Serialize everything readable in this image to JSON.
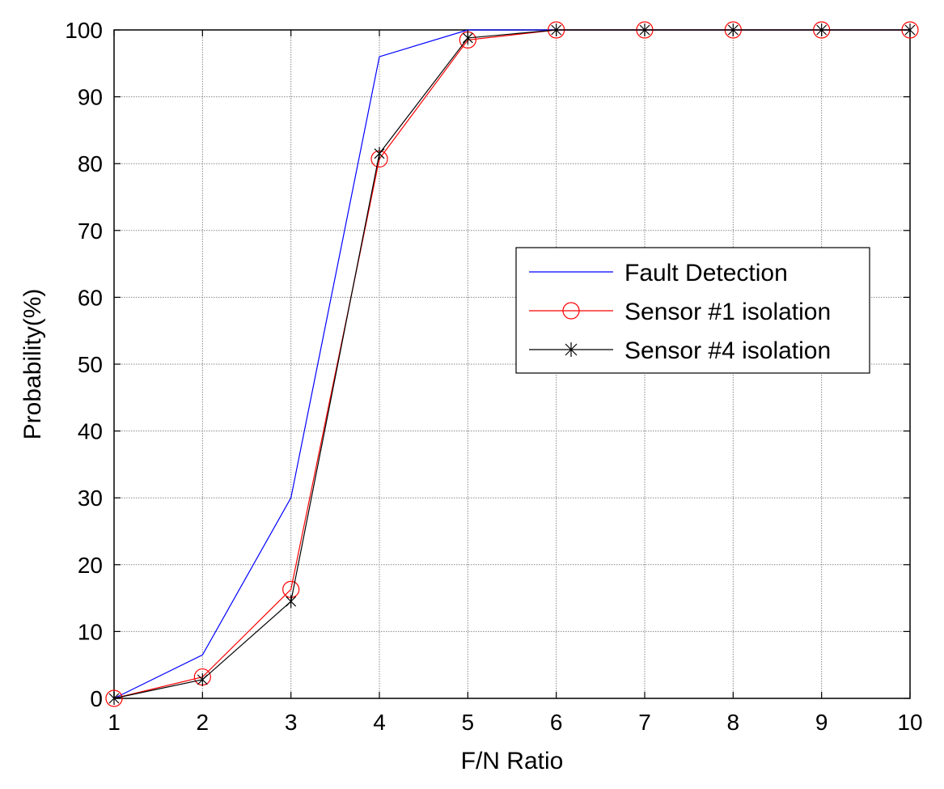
{
  "chart_data": {
    "type": "line",
    "xlabel": "F/N Ratio",
    "ylabel": "Probability(%)",
    "xlim": [
      1,
      10
    ],
    "ylim": [
      0,
      100
    ],
    "x": [
      1,
      2,
      3,
      4,
      5,
      6,
      7,
      8,
      9,
      10
    ],
    "x_ticks": [
      "1",
      "2",
      "3",
      "4",
      "5",
      "6",
      "7",
      "8",
      "9",
      "10"
    ],
    "y_ticks": [
      "0",
      "10",
      "20",
      "30",
      "40",
      "50",
      "60",
      "70",
      "80",
      "90",
      "100"
    ],
    "grid": true,
    "legend_position": "center-right",
    "series": [
      {
        "name": "Fault Detection",
        "color": "#0000ff",
        "marker": "none",
        "values": [
          0,
          6.5,
          30,
          96,
          100,
          100,
          100,
          100,
          100,
          100
        ]
      },
      {
        "name": "Sensor #1 isolation",
        "color": "#ff0000",
        "marker": "circle",
        "values": [
          0,
          3.2,
          16.3,
          80.7,
          98.5,
          100,
          100,
          100,
          100,
          100
        ]
      },
      {
        "name": "Sensor #4 isolation",
        "color": "#000000",
        "marker": "star",
        "values": [
          0,
          2.8,
          14.5,
          81.5,
          98.8,
          100,
          100,
          100,
          100,
          100
        ]
      }
    ]
  }
}
